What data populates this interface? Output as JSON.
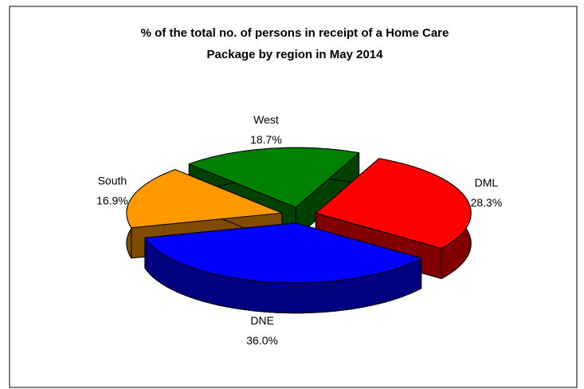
{
  "chart_data": {
    "type": "pie3d",
    "title": "% of the total no. of persons in receipt of a Home Care Package by region in May 2014",
    "categories": [
      "DML",
      "DNE",
      "South",
      "West"
    ],
    "values": [
      28.3,
      36.0,
      16.9,
      18.7
    ],
    "value_labels": [
      "28.3%",
      "36.0%",
      "16.9%",
      "18.7%"
    ],
    "colors": [
      "#ff0000",
      "#0000ff",
      "#ff9900",
      "#008000"
    ],
    "side_colors": [
      "#800000",
      "#000080",
      "#7f4c00",
      "#004000"
    ]
  }
}
